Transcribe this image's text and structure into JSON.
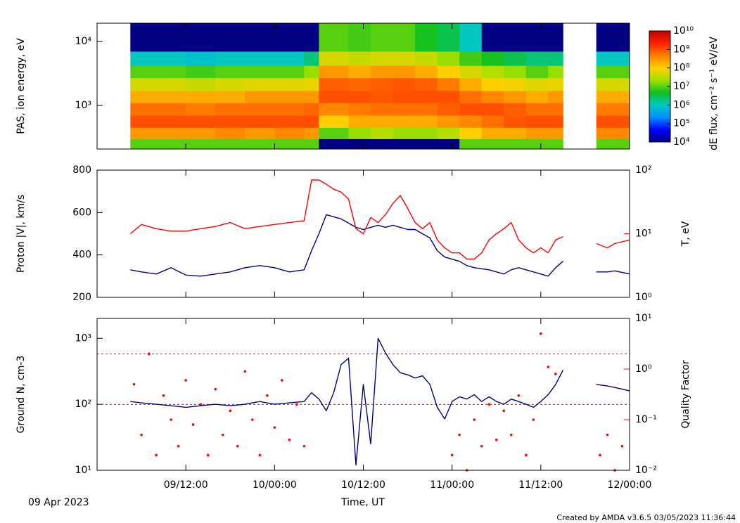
{
  "time_axis": {
    "label": "Time, UT",
    "date": "09 Apr 2023",
    "xlim": [
      "2023-04-09T00:00",
      "2023-04-12T00:00"
    ],
    "xticks": [
      {
        "value": "2023-04-09T12:00",
        "label": "09/12:00"
      },
      {
        "value": "2023-04-10T00:00",
        "label": "10/00:00"
      },
      {
        "value": "2023-04-10T12:00",
        "label": "10/12:00"
      },
      {
        "value": "2023-04-11T00:00",
        "label": "11/00:00"
      },
      {
        "value": "2023-04-11T12:00",
        "label": "11/12:00"
      },
      {
        "value": "2023-04-12T00:00",
        "label": "12/00:00"
      }
    ]
  },
  "footer": "Created by AMDA v3.6.5 03/05/2023 11:36:44",
  "chart_data": [
    {
      "type": "spectrogram",
      "ylabel": "PAS, ion energy, eV",
      "ylog": true,
      "ylim": [
        208,
        19300
      ],
      "yticks": [
        {
          "value": 1000,
          "label": "10³"
        },
        {
          "value": 10000,
          "label": "10⁴"
        }
      ],
      "x_edges": [
        "2023-04-09T04:30",
        "2023-04-09T08:00",
        "2023-04-09T12:00",
        "2023-04-09T16:00",
        "2023-04-09T20:00",
        "2023-04-10T00:00",
        "2023-04-10T04:00",
        "2023-04-10T06:00",
        "2023-04-10T10:00",
        "2023-04-10T13:00",
        "2023-04-10T16:00",
        "2023-04-10T19:00",
        "2023-04-10T22:00",
        "2023-04-11T01:00",
        "2023-04-11T04:00",
        "2023-04-11T07:00",
        "2023-04-11T10:00",
        "2023-04-11T13:00",
        "2023-04-11T15:00",
        "2023-04-11T19:30",
        "2023-04-12T00:00"
      ],
      "y_edges": [
        208,
        300,
        450,
        700,
        1100,
        1700,
        2700,
        4200,
        7000,
        19300
      ],
      "values": [
        [
          10000000.0,
          300000000.0,
          1000000000.0,
          600000000.0,
          200000000.0,
          50000000.0,
          10000000.0,
          1000000.0,
          5000.0
        ],
        [
          10000000.0,
          300000000.0,
          1000000000.0,
          600000000.0,
          200000000.0,
          50000000.0,
          10000000.0,
          1000000.0,
          5000.0
        ],
        [
          10000000.0,
          300000000.0,
          1000000000.0,
          500000000.0,
          200000000.0,
          40000000.0,
          8000000.0,
          800000.0,
          5000.0
        ],
        [
          10000000.0,
          400000000.0,
          1000000000.0,
          600000000.0,
          200000000.0,
          50000000.0,
          10000000.0,
          1000000.0,
          5000.0
        ],
        [
          10000000.0,
          300000000.0,
          1000000000.0,
          600000000.0,
          300000000.0,
          60000000.0,
          10000000.0,
          1000000.0,
          5000.0
        ],
        [
          10000000.0,
          400000000.0,
          1000000000.0,
          600000000.0,
          300000000.0,
          60000000.0,
          10000000.0,
          1000000.0,
          5000.0
        ],
        [
          10000000.0,
          300000000.0,
          1000000000.0,
          700000000.0,
          300000000.0,
          70000000.0,
          20000000.0,
          2000000.0,
          5000.0
        ],
        [
          5000.0,
          10000000.0,
          100000000.0,
          400000000.0,
          1000000000.0,
          800000000.0,
          300000000.0,
          50000000.0,
          10000000.0
        ],
        [
          5000.0,
          20000000.0,
          200000000.0,
          500000000.0,
          1000000000.0,
          700000000.0,
          200000000.0,
          40000000.0,
          8000000.0
        ],
        [
          5000.0,
          30000000.0,
          200000000.0,
          600000000.0,
          900000000.0,
          800000000.0,
          300000000.0,
          50000000.0,
          10000000.0
        ],
        [
          5000.0,
          20000000.0,
          200000000.0,
          600000000.0,
          1000000000.0,
          900000000.0,
          300000000.0,
          50000000.0,
          10000000.0
        ],
        [
          5000.0,
          20000000.0,
          200000000.0,
          600000000.0,
          1000000000.0,
          800000000.0,
          200000000.0,
          40000000.0,
          5000000.0
        ],
        [
          5000.0,
          30000000.0,
          300000000.0,
          800000000.0,
          1000000000.0,
          500000000.0,
          100000000.0,
          20000000.0,
          3000000.0
        ],
        [
          10000000.0,
          100000000.0,
          400000000.0,
          1000000000.0,
          600000000.0,
          200000000.0,
          50000000.0,
          8000000.0,
          1000000.0
        ],
        [
          10000000.0,
          200000000.0,
          600000000.0,
          1000000000.0,
          400000000.0,
          100000000.0,
          30000000.0,
          5000000.0,
          5000.0
        ],
        [
          10000000.0,
          200000000.0,
          900000000.0,
          800000000.0,
          300000000.0,
          80000000.0,
          20000000.0,
          3000000.0,
          5000.0
        ],
        [
          10000000.0,
          300000000.0,
          1000000000.0,
          600000000.0,
          200000000.0,
          60000000.0,
          10000000.0,
          2000000.0,
          5000.0
        ],
        [
          10000000.0,
          300000000.0,
          1000000000.0,
          600000000.0,
          300000000.0,
          70000000.0,
          20000000.0,
          2000000.0,
          5000.0
        ],
        [
          null,
          null,
          null,
          null,
          null,
          null,
          null,
          null,
          null
        ],
        [
          10000000.0,
          400000000.0,
          1000000000.0,
          500000000.0,
          200000000.0,
          50000000.0,
          10000000.0,
          1000000.0,
          5000.0
        ]
      ],
      "zlog": true,
      "zlim": [
        10000,
        10000000000
      ],
      "zticks": [
        {
          "value": 10000,
          "label": "10⁴"
        },
        {
          "value": 100000,
          "label": "10⁵"
        },
        {
          "value": 1000000,
          "label": "10⁶"
        },
        {
          "value": 10000000,
          "label": "10⁷"
        },
        {
          "value": 100000000,
          "label": "10⁸"
        },
        {
          "value": 1000000000,
          "label": "10⁹"
        },
        {
          "value": 10000000000,
          "label": "10¹⁰"
        }
      ],
      "zlabel": "dE flux, cm⁻² s⁻¹ eV/eV",
      "colormap": [
        "#000080",
        "#0000ff",
        "#0090ff",
        "#00c8c0",
        "#10c020",
        "#a0e000",
        "#ffd000",
        "#ff8000",
        "#ff2000",
        "#c00000"
      ]
    },
    {
      "type": "line",
      "ylim": [
        200,
        800
      ],
      "yticks": [
        200,
        400,
        600,
        800
      ],
      "y2log": true,
      "y2lim": [
        1,
        100
      ],
      "y2ticks": [
        {
          "value": 1,
          "label": "10⁰"
        },
        {
          "value": 10,
          "label": "10¹"
        },
        {
          "value": 100,
          "label": "10²"
        }
      ],
      "x": [
        "2023-04-09T04:30",
        "2023-04-09T06:00",
        "2023-04-09T08:00",
        "2023-04-09T10:00",
        "2023-04-09T12:00",
        "2023-04-09T14:00",
        "2023-04-09T16:00",
        "2023-04-09T18:00",
        "2023-04-09T20:00",
        "2023-04-09T22:00",
        "2023-04-10T00:00",
        "2023-04-10T02:00",
        "2023-04-10T04:00",
        "2023-04-10T05:00",
        "2023-04-10T06:00",
        "2023-04-10T07:00",
        "2023-04-10T08:00",
        "2023-04-10T09:00",
        "2023-04-10T10:00",
        "2023-04-10T11:00",
        "2023-04-10T12:00",
        "2023-04-10T13:00",
        "2023-04-10T14:00",
        "2023-04-10T15:00",
        "2023-04-10T16:00",
        "2023-04-10T17:00",
        "2023-04-10T18:00",
        "2023-04-10T19:00",
        "2023-04-10T20:00",
        "2023-04-10T21:00",
        "2023-04-10T22:00",
        "2023-04-10T23:00",
        "2023-04-11T00:00",
        "2023-04-11T01:00",
        "2023-04-11T02:00",
        "2023-04-11T03:00",
        "2023-04-11T04:00",
        "2023-04-11T05:00",
        "2023-04-11T06:00",
        "2023-04-11T07:00",
        "2023-04-11T08:00",
        "2023-04-11T09:00",
        "2023-04-11T10:00",
        "2023-04-11T11:00",
        "2023-04-11T12:00",
        "2023-04-11T13:00",
        "2023-04-11T14:00",
        "2023-04-11T15:00",
        "2023-04-11T17:00",
        "2023-04-11T19:30",
        "2023-04-11T21:00",
        "2023-04-11T22:00",
        "2023-04-12T00:00"
      ],
      "series": [
        {
          "name": "Proton |V|, km/s",
          "color": "#000080",
          "values": [
            330,
            320,
            310,
            340,
            305,
            300,
            310,
            320,
            340,
            350,
            340,
            320,
            330,
            420,
            500,
            590,
            580,
            570,
            550,
            530,
            520,
            530,
            540,
            530,
            540,
            530,
            520,
            520,
            500,
            480,
            420,
            390,
            380,
            370,
            350,
            340,
            335,
            330,
            320,
            310,
            330,
            340,
            330,
            320,
            310,
            300,
            340,
            370,
            null,
            320,
            320,
            325,
            310
          ]
        },
        {
          "name": "T, eV",
          "color": "#ff0000",
          "axis": "y2",
          "values": [
            10,
            14,
            12,
            11,
            11,
            12,
            13,
            15,
            12,
            13,
            14,
            15,
            16,
            70,
            70,
            60,
            50,
            45,
            35,
            12,
            10,
            18,
            15,
            20,
            30,
            40,
            25,
            15,
            12,
            15,
            8,
            6,
            5,
            5,
            4,
            4,
            5,
            8,
            10,
            12,
            15,
            8,
            6,
            5,
            6,
            5,
            8,
            9,
            null,
            7,
            6,
            7,
            8
          ]
        }
      ]
    },
    {
      "type": "line",
      "ylog": true,
      "ylim": [
        10,
        2000
      ],
      "yticks": [
        {
          "value": 10,
          "label": "10¹"
        },
        {
          "value": 100,
          "label": "10²"
        },
        {
          "value": 1000,
          "label": "10³"
        }
      ],
      "y2log": true,
      "y2lim": [
        0.01,
        10
      ],
      "y2ticks": [
        {
          "value": 0.01,
          "label": "10⁻²"
        },
        {
          "value": 0.1,
          "label": "10⁻¹"
        },
        {
          "value": 1,
          "label": "10⁰"
        },
        {
          "value": 10,
          "label": "10¹"
        }
      ],
      "y2_ref_lines": [
        2,
        0.2
      ],
      "x": [
        "2023-04-09T04:30",
        "2023-04-09T06:00",
        "2023-04-09T08:00",
        "2023-04-09T10:00",
        "2023-04-09T12:00",
        "2023-04-09T14:00",
        "2023-04-09T16:00",
        "2023-04-09T18:00",
        "2023-04-09T20:00",
        "2023-04-09T22:00",
        "2023-04-10T00:00",
        "2023-04-10T02:00",
        "2023-04-10T04:00",
        "2023-04-10T05:00",
        "2023-04-10T06:00",
        "2023-04-10T07:00",
        "2023-04-10T08:00",
        "2023-04-10T09:00",
        "2023-04-10T10:00",
        "2023-04-10T11:00",
        "2023-04-10T12:00",
        "2023-04-10T13:00",
        "2023-04-10T14:00",
        "2023-04-10T15:00",
        "2023-04-10T16:00",
        "2023-04-10T17:00",
        "2023-04-10T18:00",
        "2023-04-10T19:00",
        "2023-04-10T20:00",
        "2023-04-10T21:00",
        "2023-04-10T22:00",
        "2023-04-10T23:00",
        "2023-04-11T00:00",
        "2023-04-11T01:00",
        "2023-04-11T02:00",
        "2023-04-11T03:00",
        "2023-04-11T04:00",
        "2023-04-11T05:00",
        "2023-04-11T06:00",
        "2023-04-11T07:00",
        "2023-04-11T08:00",
        "2023-04-11T09:00",
        "2023-04-11T10:00",
        "2023-04-11T11:00",
        "2023-04-11T12:00",
        "2023-04-11T13:00",
        "2023-04-11T14:00",
        "2023-04-11T15:00",
        "2023-04-11T17:00",
        "2023-04-11T19:30",
        "2023-04-11T21:00",
        "2023-04-11T22:00",
        "2023-04-12T00:00"
      ],
      "series": [
        {
          "name": "Ground N, cm-3",
          "color": "#000080",
          "values": [
            110,
            105,
            100,
            95,
            90,
            95,
            100,
            95,
            100,
            110,
            100,
            105,
            110,
            150,
            120,
            80,
            150,
            400,
            500,
            12,
            200,
            25,
            1000,
            600,
            400,
            300,
            280,
            250,
            270,
            200,
            90,
            60,
            110,
            130,
            120,
            140,
            110,
            130,
            110,
            100,
            120,
            110,
            100,
            90,
            110,
            140,
            200,
            330,
            null,
            200,
            190,
            180,
            160
          ]
        },
        {
          "name": "Quality Factor",
          "color": "#ff0000",
          "axis": "y2",
          "type": "scatter",
          "x": [
            "2023-04-09T05:00",
            "2023-04-09T06:00",
            "2023-04-09T07:00",
            "2023-04-09T08:00",
            "2023-04-09T09:00",
            "2023-04-09T10:00",
            "2023-04-09T11:00",
            "2023-04-09T12:00",
            "2023-04-09T13:00",
            "2023-04-09T14:00",
            "2023-04-09T15:00",
            "2023-04-09T16:00",
            "2023-04-09T17:00",
            "2023-04-09T18:00",
            "2023-04-09T19:00",
            "2023-04-09T20:00",
            "2023-04-09T21:00",
            "2023-04-09T22:00",
            "2023-04-09T23:00",
            "2023-04-10T00:00",
            "2023-04-10T01:00",
            "2023-04-10T02:00",
            "2023-04-10T03:00",
            "2023-04-10T04:00",
            "2023-04-11T00:00",
            "2023-04-11T01:00",
            "2023-04-11T02:00",
            "2023-04-11T03:00",
            "2023-04-11T04:00",
            "2023-04-11T05:00",
            "2023-04-11T06:00",
            "2023-04-11T07:00",
            "2023-04-11T08:00",
            "2023-04-11T09:00",
            "2023-04-11T10:00",
            "2023-04-11T11:00",
            "2023-04-11T12:00",
            "2023-04-11T13:00",
            "2023-04-11T14:00",
            "2023-04-11T20:00",
            "2023-04-11T21:00",
            "2023-04-11T22:00",
            "2023-04-11T23:00"
          ],
          "values": [
            0.5,
            0.05,
            2,
            0.02,
            0.3,
            0.1,
            0.03,
            0.6,
            0.08,
            0.2,
            0.02,
            0.4,
            0.05,
            0.15,
            0.03,
            0.9,
            0.1,
            0.02,
            0.3,
            0.07,
            0.6,
            0.04,
            0.2,
            0.03,
            0.02,
            0.05,
            0.01,
            0.1,
            0.03,
            0.2,
            0.04,
            0.15,
            0.05,
            0.3,
            0.02,
            0.1,
            5,
            1.1,
            0.8,
            0.02,
            0.05,
            0.01,
            0.03
          ]
        }
      ]
    }
  ]
}
